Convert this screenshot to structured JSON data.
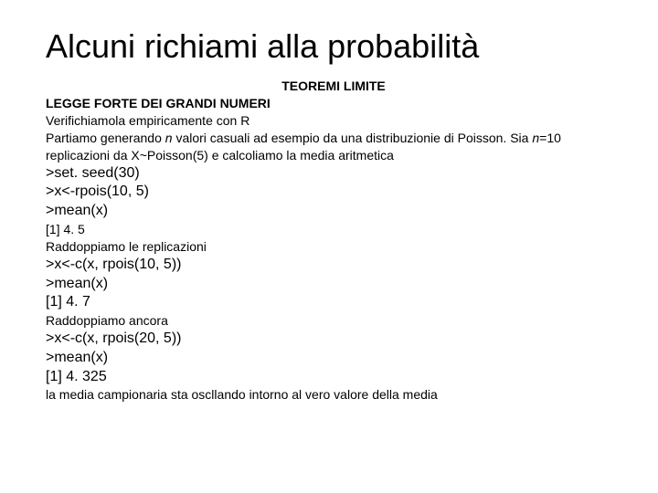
{
  "title": "Alcuni richiami alla probabilità",
  "subtitle": "TEOREMI LIMITE",
  "l1": "LEGGE FORTE DEI GRANDI NUMERI",
  "l2": "Verifichiamola empiricamente con R",
  "l3a": "Partiamo generando ",
  "l3b": "n",
  "l3c": " valori casuali ad esempio da una distribuzionie di Poisson. Sia ",
  "l3d": "n",
  "l3e": "=10 replicazioni da X~Poisson(5) e calcoliamo la media aritmetica",
  "c1": ">set. seed(30)",
  "c2": ">x<-rpois(10, 5)",
  "c3": ">mean(x)",
  "r1": "[1] 4. 5",
  "l4": "Raddoppiamo le replicazioni",
  "c4": ">x<-c(x, rpois(10, 5))",
  "c5": ">mean(x)",
  "c6": "[1] 4. 7",
  "l5": "Raddoppiamo ancora",
  "c7": ">x<-c(x, rpois(20, 5))",
  "c8": ">mean(x)",
  "c9": "[1] 4. 325",
  "l6": "la media campionaria sta oscllando intorno al vero valore della media",
  "colors": {
    "bg": "#ffffff",
    "text": "#000000"
  },
  "fonts": {
    "title_size": 36,
    "body_size": 14,
    "code_size": 16
  }
}
